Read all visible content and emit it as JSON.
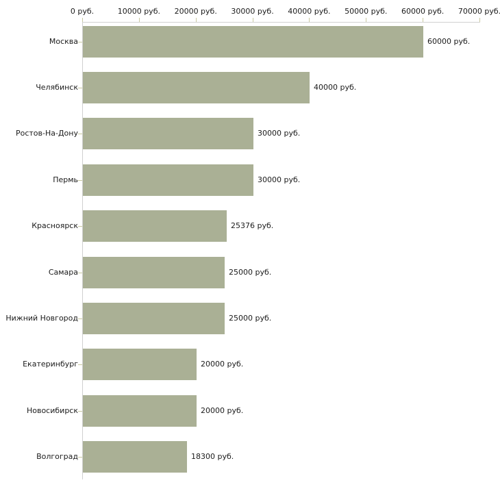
{
  "chart_data": {
    "type": "bar",
    "orientation": "horizontal",
    "title": "",
    "xlabel": "",
    "ylabel": "",
    "unit_suffix": " руб.",
    "categories": [
      "Москва",
      "Челябинск",
      "Ростов-На-Дону",
      "Пермь",
      "Красноярск",
      "Самара",
      "Нижний Новгород",
      "Екатеринбург",
      "Новосибирск",
      "Волгоград"
    ],
    "values": [
      60000,
      40000,
      30000,
      30000,
      25376,
      25000,
      25000,
      20000,
      20000,
      18300
    ],
    "value_labels": [
      "60000 руб.",
      "40000 руб.",
      "30000 руб.",
      "30000 руб.",
      "25376 руб.",
      "25000 руб.",
      "25000 руб.",
      "20000 руб.",
      "20000 руб.",
      "18300 руб."
    ],
    "x_tick_values": [
      0,
      10000,
      20000,
      30000,
      40000,
      50000,
      60000,
      70000
    ],
    "x_tick_labels": [
      "0 руб.",
      "10000 руб.",
      "20000 руб.",
      "30000 руб.",
      "40000 руб.",
      "50000 руб.",
      "60000 руб.",
      "70000 руб."
    ],
    "xlim": [
      0,
      70000
    ],
    "grid": false,
    "legend": "none",
    "colors": {
      "bar_fill": "#aab095",
      "axis_line": "#d0d0d0",
      "tick_mark": "#c9c9a1",
      "text": "#1a1a1a",
      "background": "#ffffff"
    }
  }
}
